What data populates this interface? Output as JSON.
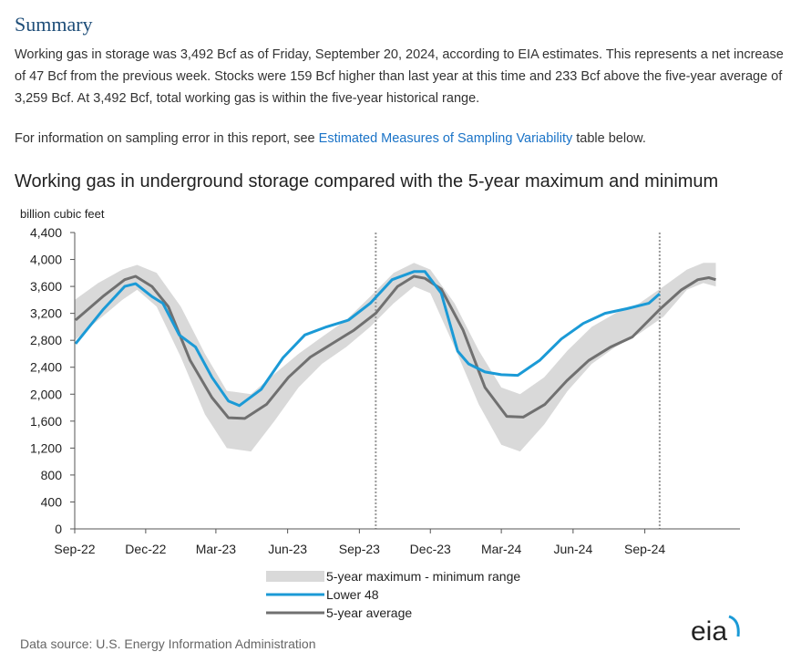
{
  "summary": {
    "title": "Summary",
    "paragraph": "Working gas in storage was 3,492 Bcf as of Friday, September 20, 2024, according to EIA estimates. This represents a net increase of 47 Bcf from the previous week. Stocks were 159 Bcf higher than last year at this time and 233 Bcf above the five-year average of 3,259 Bcf. At 3,492 Bcf, total working gas is within the five-year historical range.",
    "note_prefix": "For information on sampling error in this report, see ",
    "note_link": "Estimated Measures of Sampling Variability",
    "note_suffix": " table below."
  },
  "colors": {
    "lower48": "#1b9ad6",
    "average": "#707070",
    "range": "#d9d9d9",
    "title": "#1f4e79",
    "link": "#1a73c7"
  },
  "chart_data": {
    "type": "area",
    "title": "Working gas in underground  storage compared with the 5-year maximum and minimum",
    "ylabel": "billion cubic feet",
    "ylim": [
      0,
      4400
    ],
    "yticks": [
      0,
      400,
      800,
      1200,
      1600,
      2000,
      2400,
      2800,
      3200,
      3600,
      4000,
      4400
    ],
    "ytick_labels": [
      "0",
      "400",
      "800",
      "1,200",
      "1,600",
      "2,000",
      "2,400",
      "2,800",
      "3,200",
      "3,600",
      "4,000",
      "4,400"
    ],
    "xlim": [
      "2022-09-01",
      "2025-01-01"
    ],
    "xticks": [
      "Sep-22",
      "Dec-22",
      "Mar-23",
      "Jun-23",
      "Sep-23",
      "Dec-23",
      "Mar-24",
      "Jun-24",
      "Sep-24"
    ],
    "xtick_dates": [
      "2022-09-01",
      "2022-12-01",
      "2023-03-01",
      "2023-06-01",
      "2023-09-01",
      "2023-12-01",
      "2024-03-01",
      "2024-06-01",
      "2024-09-01"
    ],
    "vlines": [
      "2023-09-22",
      "2024-09-20"
    ],
    "legend_position": "bottom",
    "series": [
      {
        "name": "5-year maximum - minimum range",
        "kind": "band",
        "x": [
          "2022-09-01",
          "2022-10-01",
          "2022-11-01",
          "2022-11-20",
          "2022-12-15",
          "2023-01-15",
          "2023-02-15",
          "2023-03-15",
          "2023-04-15",
          "2023-05-15",
          "2023-06-15",
          "2023-07-15",
          "2023-08-15",
          "2023-09-15",
          "2023-10-15",
          "2023-11-10",
          "2023-12-01",
          "2024-01-01",
          "2024-02-01",
          "2024-03-01",
          "2024-03-25",
          "2024-04-25",
          "2024-05-25",
          "2024-06-25",
          "2024-07-25",
          "2024-08-25",
          "2024-09-25",
          "2024-10-25",
          "2024-11-15",
          "2024-12-01"
        ],
        "upper": [
          3400,
          3650,
          3850,
          3920,
          3800,
          3300,
          2600,
          2050,
          2000,
          2300,
          2600,
          2850,
          3100,
          3450,
          3800,
          3950,
          3850,
          3350,
          2650,
          2100,
          2000,
          2250,
          2650,
          3000,
          3200,
          3350,
          3600,
          3850,
          3950,
          3950
        ],
        "lower": [
          2800,
          3100,
          3400,
          3550,
          3300,
          2550,
          1700,
          1200,
          1150,
          1600,
          2100,
          2450,
          2700,
          3000,
          3350,
          3600,
          3500,
          2700,
          1850,
          1250,
          1150,
          1550,
          2050,
          2450,
          2700,
          2900,
          3150,
          3550,
          3650,
          3600
        ]
      },
      {
        "name": "Lower 48",
        "kind": "line",
        "x": [
          "2022-09-02",
          "2022-10-07",
          "2022-11-04",
          "2022-11-18",
          "2022-12-09",
          "2022-12-23",
          "2023-01-13",
          "2023-02-03",
          "2023-02-24",
          "2023-03-17",
          "2023-03-31",
          "2023-04-28",
          "2023-05-26",
          "2023-06-23",
          "2023-07-21",
          "2023-08-18",
          "2023-09-15",
          "2023-10-13",
          "2023-11-10",
          "2023-11-24",
          "2023-12-15",
          "2024-01-05",
          "2024-01-19",
          "2024-02-09",
          "2024-03-01",
          "2024-03-22",
          "2024-04-19",
          "2024-05-17",
          "2024-06-14",
          "2024-07-12",
          "2024-08-09",
          "2024-09-06",
          "2024-09-20"
        ],
        "values": [
          2750,
          3250,
          3600,
          3640,
          3450,
          3350,
          2880,
          2700,
          2250,
          1900,
          1830,
          2070,
          2540,
          2880,
          3000,
          3100,
          3350,
          3700,
          3820,
          3820,
          3500,
          2640,
          2450,
          2330,
          2290,
          2280,
          2500,
          2820,
          3050,
          3200,
          3270,
          3350,
          3492
        ]
      },
      {
        "name": "5-year average",
        "kind": "line",
        "x": [
          "2022-09-02",
          "2022-10-07",
          "2022-11-04",
          "2022-11-18",
          "2022-12-09",
          "2022-12-30",
          "2023-01-27",
          "2023-02-24",
          "2023-03-17",
          "2023-04-07",
          "2023-05-05",
          "2023-06-02",
          "2023-06-30",
          "2023-07-28",
          "2023-08-25",
          "2023-09-22",
          "2023-10-20",
          "2023-11-10",
          "2023-11-24",
          "2023-12-15",
          "2024-01-12",
          "2024-02-09",
          "2024-03-08",
          "2024-03-29",
          "2024-04-26",
          "2024-05-24",
          "2024-06-21",
          "2024-07-19",
          "2024-08-16",
          "2024-09-20",
          "2024-10-18",
          "2024-11-08",
          "2024-11-22",
          "2024-12-01"
        ],
        "values": [
          3100,
          3450,
          3700,
          3750,
          3600,
          3300,
          2500,
          1950,
          1650,
          1640,
          1850,
          2250,
          2550,
          2750,
          2950,
          3200,
          3600,
          3750,
          3720,
          3560,
          2950,
          2100,
          1670,
          1660,
          1850,
          2200,
          2500,
          2700,
          2850,
          3259,
          3550,
          3700,
          3730,
          3700
        ]
      }
    ]
  },
  "source": {
    "text": "Data source:  U.S. Energy Information Administration",
    "logo_text": "eia"
  }
}
